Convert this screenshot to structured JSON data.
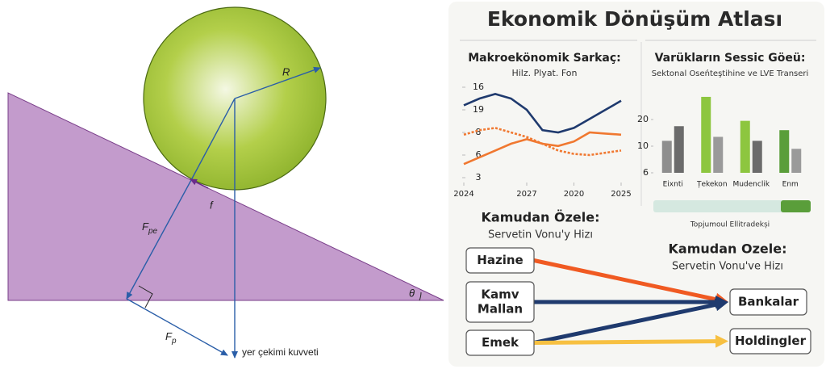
{
  "physics_diagram": {
    "radius_label": "R",
    "friction_label": "f",
    "perpendicular_force": {
      "symbol": "F",
      "subscript": "pe"
    },
    "parallel_force": {
      "symbol": "F",
      "subscript": "p"
    },
    "angle_label": "θ",
    "gravity_label": "yer çekimi kuvveti"
  },
  "infographic": {
    "title": "Ekonomik Dönüşüm Atlası",
    "line_chart": {
      "type": "line",
      "title": "Makroekönomik Sarkaç:",
      "subtitle": "Hilz. Plyat. Fon",
      "x": [
        0,
        1,
        2,
        3,
        4,
        5,
        6,
        7,
        8,
        9,
        10
      ],
      "xlim": [
        0,
        10
      ],
      "xticks": [
        {
          "value": 0,
          "label": "2024"
        },
        {
          "value": 4,
          "label": "2027"
        },
        {
          "value": 7,
          "label": "2020"
        },
        {
          "value": 10,
          "label": "2025"
        }
      ],
      "ylim": [
        0,
        4
      ],
      "yticks": [
        {
          "value": 4,
          "label": "16"
        },
        {
          "value": 3,
          "label": "19"
        },
        {
          "value": 2,
          "label": "8"
        },
        {
          "value": 1,
          "label": "6"
        },
        {
          "value": 0,
          "label": "3"
        }
      ],
      "series": [
        {
          "color": "#1f3a6e",
          "style": "solid",
          "values": [
            3.2,
            3.5,
            3.7,
            3.5,
            3.0,
            2.1,
            2.0,
            2.2,
            2.6,
            3.0,
            3.4
          ]
        },
        {
          "color": "#f07830",
          "style": "solid",
          "values": [
            0.6,
            0.9,
            1.2,
            1.5,
            1.7,
            1.5,
            1.4,
            1.6,
            2.0,
            1.95,
            1.9
          ]
        },
        {
          "color": "#f07830",
          "style": "dotted",
          "values": [
            1.9,
            2.1,
            2.2,
            2.0,
            1.8,
            1.5,
            1.2,
            1.05,
            1.0,
            1.1,
            1.2
          ]
        }
      ]
    },
    "bar_chart": {
      "type": "bar",
      "title": "Varükların Sessic Göeü:",
      "subtitle": "Sektonal Oseńteştihine ve LVE Transeri",
      "categories": [
        "Eixnti",
        "Țekekon",
        "Mudenclik",
        "Enm"
      ],
      "ylim": [
        0,
        3
      ],
      "yticks": [
        {
          "value": 2,
          "label": "20"
        },
        {
          "value": 1,
          "label": "10"
        },
        {
          "value": 0,
          "label": "6"
        }
      ],
      "series": [
        {
          "colors": [
            "#8e8e8e",
            "#8dc63f",
            "#8dc63f",
            "#5a9e3a"
          ],
          "values": [
            1.2,
            2.85,
            1.95,
            1.6
          ]
        },
        {
          "colors": [
            "#6b6b6b",
            "#9a9a9a",
            "#6b6b6b",
            "#9a9a9a"
          ],
          "values": [
            1.75,
            1.35,
            1.2,
            0.9
          ]
        }
      ],
      "footer": "Topjumoul Ellitradekși"
    },
    "flow": {
      "left_title": "Kamudan Özele:",
      "left_subtitle": "Servetin Vonu'y Hizı",
      "right_title": "Kamudan Ozele:",
      "right_subtitle": "Servetin Vonu've Hizı",
      "sources": [
        {
          "label_lines": [
            "Hazine"
          ]
        },
        {
          "label_lines": [
            "Kamv",
            "Mallan"
          ]
        },
        {
          "label_lines": [
            "Emek"
          ]
        }
      ],
      "targets": [
        {
          "label_lines": [
            "Bankalar"
          ]
        },
        {
          "label_lines": [
            "Holdingler"
          ]
        }
      ],
      "links": [
        {
          "from": 0,
          "to": 0,
          "color": "#f05a22"
        },
        {
          "from": 1,
          "to": 0,
          "color": "#1f3a6e"
        },
        {
          "from": 2,
          "to": 0,
          "color": "#1f3a6e"
        },
        {
          "from": 2,
          "to": 1,
          "color": "#f7c041"
        }
      ]
    }
  }
}
